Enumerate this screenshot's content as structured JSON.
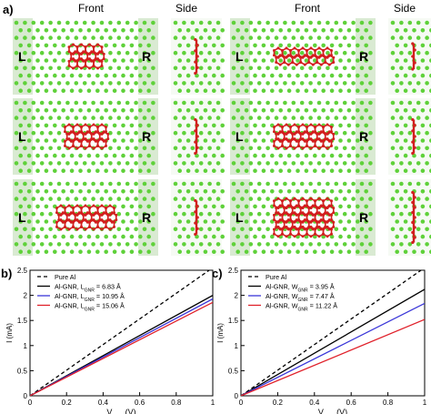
{
  "panel_a": {
    "label": "a)",
    "column_headers": [
      "Front",
      "Side",
      "Front",
      "Side"
    ],
    "electrode_left": "L",
    "electrode_right": "R",
    "atom_colors": {
      "al": "#5fd13a",
      "c": "#d21e1e",
      "region": "#d9ead2"
    },
    "structures": [
      {
        "group": "length",
        "row": 1,
        "ribbon_cols": 4,
        "ribbon_rows": 3
      },
      {
        "group": "length",
        "row": 2,
        "ribbon_cols": 5,
        "ribbon_rows": 3
      },
      {
        "group": "length",
        "row": 3,
        "ribbon_cols": 7,
        "ribbon_rows": 3
      },
      {
        "group": "width",
        "row": 1,
        "ribbon_cols": 7,
        "ribbon_rows": 2
      },
      {
        "group": "width",
        "row": 2,
        "ribbon_cols": 7,
        "ribbon_rows": 3
      },
      {
        "group": "width",
        "row": 3,
        "ribbon_cols": 7,
        "ribbon_rows": 5
      }
    ]
  },
  "chart_data": [
    {
      "panel": "b)",
      "type": "line",
      "xlabel": "V",
      "xlabel_sub": "Bias",
      "xlabel_unit": " (V)",
      "ylabel": "I (mA)",
      "xlim": [
        0,
        1
      ],
      "ylim": [
        0,
        2.5
      ],
      "xticks": [
        "0",
        "0.2",
        "0.4",
        "0.6",
        "0.8",
        "1"
      ],
      "yticks": [
        "0",
        "0.5",
        "1",
        "1.5",
        "2",
        "2.5"
      ],
      "grid": false,
      "legend_position": "top-left",
      "series": [
        {
          "name": "Pure Al",
          "color": "#000000",
          "dash": "4,3",
          "x": [
            0,
            1
          ],
          "y": [
            0,
            2.55
          ]
        },
        {
          "name_main": "Al-GNR, L",
          "name_sub": "GNR",
          "name_tail": " =  6.83 Å",
          "color": "#000000",
          "dash": "",
          "x": [
            0,
            1
          ],
          "y": [
            0,
            2.0
          ]
        },
        {
          "name_main": "Al-GNR, L",
          "name_sub": "GNR",
          "name_tail": " = 10.95 Å",
          "color": "#3a36d8",
          "dash": "",
          "x": [
            0,
            1
          ],
          "y": [
            0,
            1.93
          ]
        },
        {
          "name_main": "Al-GNR, L",
          "name_sub": "GNR",
          "name_tail": " = 15.06 Å",
          "color": "#e0202a",
          "dash": "",
          "x": [
            0,
            1
          ],
          "y": [
            0,
            1.86
          ]
        }
      ]
    },
    {
      "panel": "c)",
      "type": "line",
      "xlabel": "V",
      "xlabel_sub": "Bias",
      "xlabel_unit": " (V)",
      "ylabel": "I (mA)",
      "xlim": [
        0,
        1
      ],
      "ylim": [
        0,
        2.5
      ],
      "xticks": [
        "0",
        "0.2",
        "0.4",
        "0.6",
        "0.8",
        "1"
      ],
      "yticks": [
        "0",
        "0.5",
        "1",
        "1.5",
        "2",
        "2.5"
      ],
      "grid": false,
      "legend_position": "top-left",
      "series": [
        {
          "name": "Pure Al",
          "color": "#000000",
          "dash": "4,3",
          "x": [
            0,
            1
          ],
          "y": [
            0,
            2.55
          ]
        },
        {
          "name_main": "Al-GNR, W",
          "name_sub": "GNR",
          "name_tail": " = 3.95 Å",
          "color": "#000000",
          "dash": "",
          "x": [
            0,
            1
          ],
          "y": [
            0,
            2.12
          ]
        },
        {
          "name_main": "Al-GNR, W",
          "name_sub": "GNR",
          "name_tail": " = 7.47 Å",
          "color": "#3a36d8",
          "dash": "",
          "x": [
            0,
            1
          ],
          "y": [
            0,
            1.84
          ]
        },
        {
          "name_main": "Al-GNR, W",
          "name_sub": "GNR",
          "name_tail": " = 11.22 Å",
          "color": "#e0202a",
          "dash": "",
          "x": [
            0,
            1
          ],
          "y": [
            0,
            1.52
          ]
        }
      ]
    }
  ]
}
